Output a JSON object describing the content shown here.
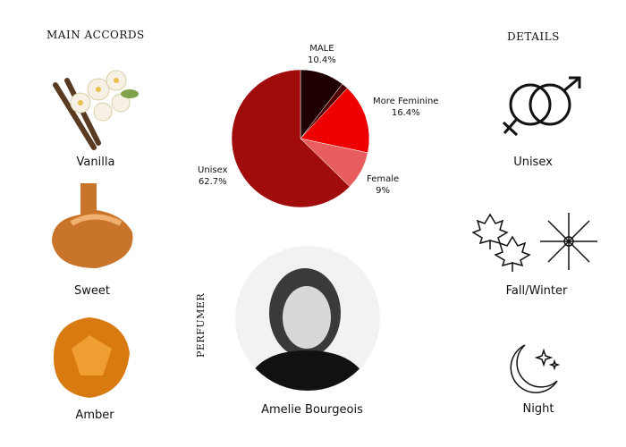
{
  "accords": {
    "heading": "MAIN ACCORDS",
    "items": [
      {
        "label": "Vanilla",
        "icon": "vanilla-image"
      },
      {
        "label": "Sweet",
        "icon": "caramel-image"
      },
      {
        "label": "Amber",
        "icon": "amber-image"
      }
    ]
  },
  "details": {
    "heading": "DETAILS",
    "items": [
      {
        "label": "Unisex",
        "icon": "gender-icon"
      },
      {
        "label": "Fall/Winter",
        "icon": "season-icon"
      },
      {
        "label": "Night",
        "icon": "moon-icon"
      }
    ]
  },
  "perfumer": {
    "heading": "PERFUMER",
    "name": "Amelie Bourgeois"
  },
  "chart_data": {
    "type": "pie",
    "slices": [
      {
        "name": "MALE",
        "value": 10.4,
        "label": "10.4%",
        "color": "#1e0000"
      },
      {
        "name": "",
        "value": 1.5,
        "label": "",
        "color": "#500000"
      },
      {
        "name": "More Feminine",
        "value": 16.4,
        "label": "16.4%",
        "color": "#ee0000"
      },
      {
        "name": "Female",
        "value": 9,
        "label": "9%",
        "color": "#e85d5d"
      },
      {
        "name": "Unisex",
        "value": 62.7,
        "label": "62.7%",
        "color": "#a00c0c"
      }
    ]
  }
}
